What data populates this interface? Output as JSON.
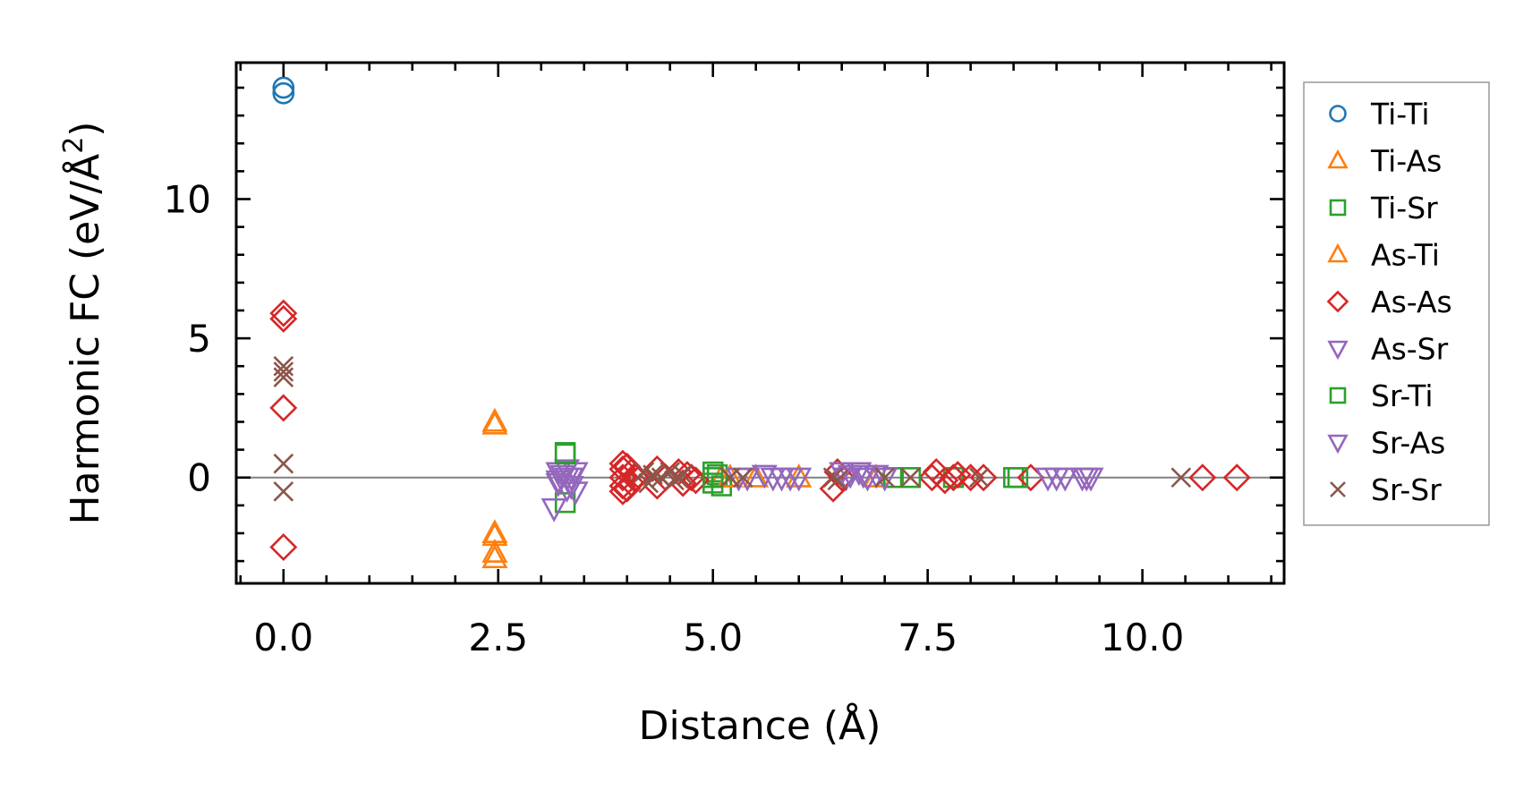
{
  "chart_data": {
    "type": "scatter",
    "title": "",
    "xlabel": "Distance (Å)",
    "ylabel": "Harmonic FC (eV/Å²)",
    "ylabel_parts": {
      "main": "Harmonic FC (eV/Å",
      "sup": "2",
      "close": ")"
    },
    "xlim": [
      -0.55,
      11.65
    ],
    "ylim": [
      -3.8,
      14.9
    ],
    "xticks": [
      0.0,
      2.5,
      5.0,
      7.5,
      10.0
    ],
    "xtick_labels": [
      "0.0",
      "2.5",
      "5.0",
      "7.5",
      "10.0"
    ],
    "yticks": [
      0,
      5,
      10
    ],
    "ytick_labels": [
      "0",
      "5",
      "10"
    ],
    "zero_line": true,
    "grid": false,
    "legend_position": "outside-right",
    "series": [
      {
        "name": "Ti-Ti",
        "marker": "circle",
        "color": "#1f77b4",
        "points": [
          [
            0.0,
            14.0
          ],
          [
            0.0,
            13.8
          ]
        ]
      },
      {
        "name": "Ti-As",
        "marker": "triangle-up",
        "color": "#ff7f0e",
        "points": [
          [
            2.46,
            2.0
          ],
          [
            2.46,
            -2.0
          ],
          [
            2.46,
            -2.7
          ],
          [
            2.46,
            -2.9
          ],
          [
            5.1,
            0.0
          ],
          [
            5.5,
            0.0
          ],
          [
            6.9,
            0.0
          ]
        ]
      },
      {
        "name": "Ti-Sr",
        "marker": "square",
        "color": "#2ca02c",
        "points": [
          [
            3.28,
            0.9
          ],
          [
            3.28,
            -0.9
          ],
          [
            5.0,
            0.2
          ],
          [
            5.0,
            -0.2
          ],
          [
            5.05,
            0.1
          ],
          [
            5.1,
            -0.3
          ],
          [
            7.1,
            0.0
          ],
          [
            7.8,
            0.0
          ],
          [
            8.5,
            0.0
          ]
        ]
      },
      {
        "name": "As-Ti",
        "marker": "triangle-up",
        "color": "#ff7f0e",
        "points": [
          [
            2.46,
            1.9
          ],
          [
            2.46,
            -2.1
          ],
          [
            5.2,
            0.0
          ],
          [
            6.0,
            0.0
          ]
        ]
      },
      {
        "name": "As-As",
        "marker": "diamond",
        "color": "#d62728",
        "points": [
          [
            0.0,
            5.9
          ],
          [
            0.0,
            5.7
          ],
          [
            0.0,
            2.5
          ],
          [
            0.0,
            -2.5
          ],
          [
            3.95,
            0.5
          ],
          [
            3.95,
            0.3
          ],
          [
            3.95,
            0.0
          ],
          [
            3.95,
            -0.3
          ],
          [
            3.95,
            -0.5
          ],
          [
            4.0,
            0.4
          ],
          [
            4.0,
            -0.4
          ],
          [
            4.05,
            0.2
          ],
          [
            4.05,
            -0.2
          ],
          [
            4.1,
            0.0
          ],
          [
            4.35,
            0.3
          ],
          [
            4.35,
            -0.3
          ],
          [
            4.45,
            0.0
          ],
          [
            4.6,
            0.2
          ],
          [
            4.65,
            -0.2
          ],
          [
            4.7,
            0.1
          ],
          [
            4.75,
            0.0
          ],
          [
            4.8,
            -0.1
          ],
          [
            6.4,
            -0.4
          ],
          [
            6.45,
            0.2
          ],
          [
            6.5,
            0.0
          ],
          [
            7.55,
            0.0
          ],
          [
            7.6,
            0.2
          ],
          [
            7.7,
            -0.1
          ],
          [
            7.8,
            0.0
          ],
          [
            7.85,
            0.1
          ],
          [
            8.0,
            0.0
          ],
          [
            8.15,
            0.0
          ],
          [
            8.7,
            0.0
          ],
          [
            10.7,
            0.0
          ],
          [
            11.1,
            0.0
          ]
        ]
      },
      {
        "name": "As-Sr",
        "marker": "triangle-down",
        "color": "#9467bd",
        "points": [
          [
            3.15,
            -1.1
          ],
          [
            3.2,
            0.2
          ],
          [
            3.2,
            -0.2
          ],
          [
            3.25,
            0.1
          ],
          [
            3.3,
            -0.4
          ],
          [
            3.3,
            0.3
          ],
          [
            3.35,
            0.0
          ],
          [
            3.4,
            -0.5
          ],
          [
            3.4,
            0.2
          ],
          [
            5.3,
            0.0
          ],
          [
            5.6,
            0.1
          ],
          [
            5.7,
            0.0
          ],
          [
            5.9,
            0.0
          ],
          [
            6.0,
            0.0
          ],
          [
            6.5,
            0.2
          ],
          [
            6.6,
            0.1
          ],
          [
            6.7,
            0.2
          ],
          [
            6.8,
            0.0
          ],
          [
            6.9,
            0.1
          ],
          [
            7.0,
            0.0
          ],
          [
            8.9,
            0.0
          ],
          [
            9.1,
            0.0
          ],
          [
            9.3,
            0.0
          ],
          [
            9.4,
            0.0
          ]
        ]
      },
      {
        "name": "Sr-Ti",
        "marker": "square",
        "color": "#2ca02c",
        "points": [
          [
            3.28,
            0.85
          ],
          [
            5.0,
            0.0
          ],
          [
            7.3,
            0.0
          ],
          [
            8.55,
            0.0
          ]
        ]
      },
      {
        "name": "Sr-As",
        "marker": "triangle-down",
        "color": "#9467bd",
        "points": [
          [
            3.2,
            -0.1
          ],
          [
            3.3,
            0.0
          ],
          [
            3.35,
            -0.3
          ],
          [
            5.4,
            0.0
          ],
          [
            5.8,
            0.0
          ],
          [
            6.55,
            0.0
          ],
          [
            6.75,
            0.1
          ],
          [
            9.0,
            0.0
          ],
          [
            9.35,
            0.0
          ]
        ]
      },
      {
        "name": "Sr-Sr",
        "marker": "x",
        "color": "#8c564b",
        "points": [
          [
            0.0,
            4.0
          ],
          [
            0.0,
            3.8
          ],
          [
            0.0,
            3.6
          ],
          [
            0.0,
            0.5
          ],
          [
            0.0,
            -0.5
          ],
          [
            4.2,
            0.2
          ],
          [
            4.25,
            -0.2
          ],
          [
            4.3,
            0.1
          ],
          [
            4.4,
            0.0
          ],
          [
            4.5,
            0.2
          ],
          [
            4.55,
            -0.1
          ],
          [
            4.6,
            0.0
          ],
          [
            4.65,
            0.1
          ],
          [
            5.2,
            0.0
          ],
          [
            5.35,
            0.0
          ],
          [
            6.4,
            0.0
          ],
          [
            6.45,
            -0.1
          ],
          [
            7.0,
            0.0
          ],
          [
            7.3,
            0.0
          ],
          [
            8.1,
            0.0
          ],
          [
            10.45,
            0.0
          ]
        ]
      }
    ]
  }
}
